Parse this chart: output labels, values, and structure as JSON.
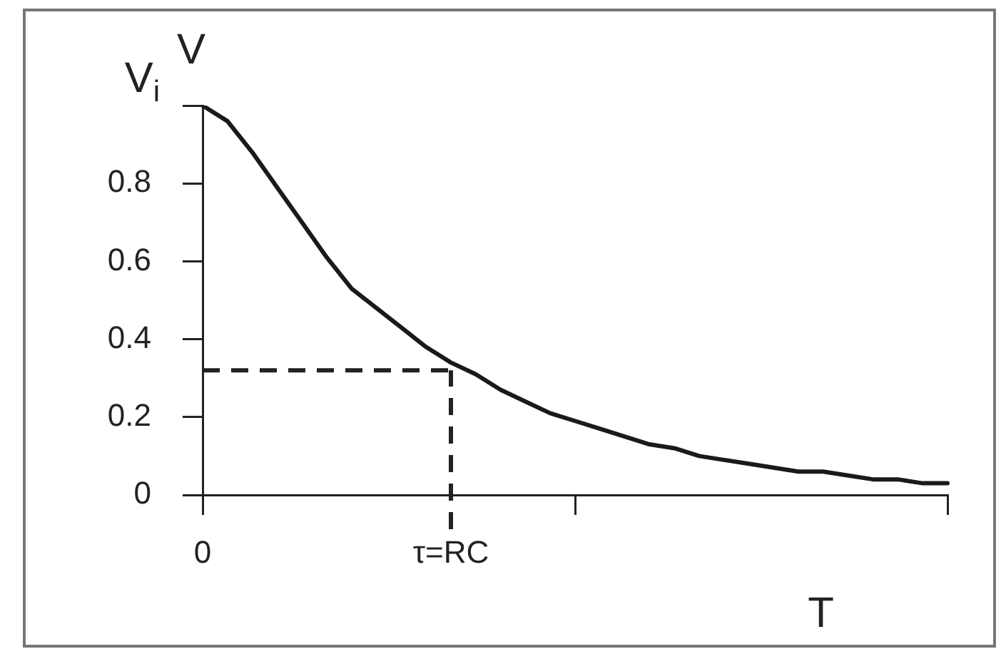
{
  "chart_data": {
    "type": "line",
    "xlabel": "T",
    "ylabel": "V",
    "categories": [
      "0",
      null,
      null,
      null,
      null,
      null,
      null,
      null,
      null,
      null,
      "τ=RC",
      null,
      null,
      null,
      null,
      null,
      null,
      null,
      null,
      null,
      null,
      null,
      null,
      null,
      null,
      null,
      null,
      null,
      null,
      null,
      null
    ],
    "series": [
      {
        "color": "#1a1a1a",
        "values": [
          1.0,
          0.96,
          0.88,
          0.79,
          0.7,
          0.61,
          0.53,
          0.48,
          0.43,
          0.38,
          0.34,
          0.31,
          0.27,
          0.24,
          0.21,
          0.19,
          0.17,
          0.15,
          0.13,
          0.12,
          0.1,
          0.09,
          0.08,
          0.07,
          0.06,
          0.06,
          0.05,
          0.04,
          0.04,
          0.03,
          0.03
        ]
      }
    ],
    "ylim": [
      0,
      1
    ],
    "yticks": [
      0,
      0.2,
      0.4,
      0.6,
      0.8,
      {
        "value": 1,
        "label": "V$_{i}$"
      }
    ],
    "ref_lines": [
      {
        "axis": "y",
        "value": 0.32,
        "line_style": "dashed"
      },
      {
        "axis": "x",
        "value": "τ=RC",
        "line_style": "dashed"
      }
    ],
    "grid": false,
    "legend": false,
    "marker": "none",
    "line_style": "solid"
  }
}
